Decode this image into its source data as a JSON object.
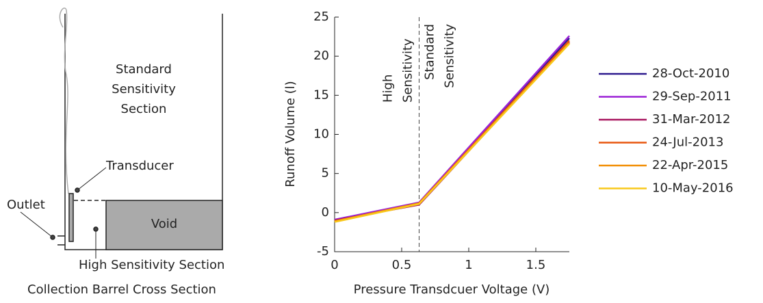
{
  "diagram": {
    "standard_section": [
      "Standard",
      "Sensitivity",
      "Section"
    ],
    "transducer": "Transducer",
    "outlet": "Outlet",
    "void": "Void",
    "high_section": "High Sensitivity Section",
    "caption": "Collection Barrel Cross Section"
  },
  "chart_data": {
    "type": "line",
    "xlabel": "Pressure Transdcuer Voltage (V)",
    "ylabel": "Runoff Volume (l)",
    "x": [
      0,
      0.63,
      1.75
    ],
    "series": [
      {
        "name": "28-Oct-2010",
        "color": "#2e1a8e",
        "values": [
          -1.0,
          1.2,
          22.3
        ]
      },
      {
        "name": "29-Sep-2011",
        "color": "#9b22d6",
        "values": [
          -0.9,
          1.3,
          22.6
        ]
      },
      {
        "name": "31-Mar-2012",
        "color": "#a8145e",
        "values": [
          -1.0,
          1.0,
          21.8
        ]
      },
      {
        "name": "24-Jul-2013",
        "color": "#e8560f",
        "values": [
          -1.1,
          1.2,
          22.0
        ]
      },
      {
        "name": "22-Apr-2015",
        "color": "#f29008",
        "values": [
          -1.1,
          1.2,
          21.7
        ]
      },
      {
        "name": "10-May-2016",
        "color": "#f8c81a",
        "values": [
          -1.2,
          1.1,
          21.6
        ]
      }
    ],
    "xlim": [
      0,
      1.75
    ],
    "ylim": [
      -5,
      25
    ],
    "xticks": [
      0,
      0.5,
      1,
      1.5
    ],
    "yticks": [
      -5,
      0,
      5,
      10,
      15,
      20,
      25
    ],
    "divider_x": 0.63,
    "annotations": [
      [
        "High",
        "Sensitivity"
      ],
      [
        "Standard",
        "Sensitivity"
      ]
    ]
  }
}
